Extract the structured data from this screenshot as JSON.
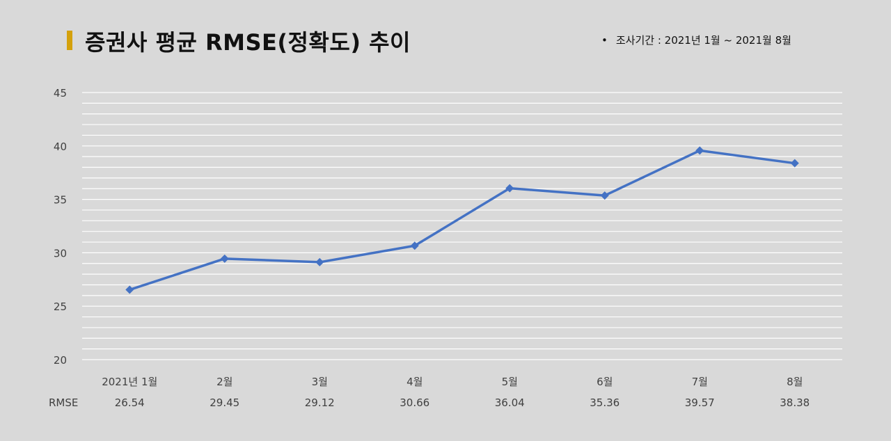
{
  "header": {
    "title": "증권사 평균 RMSE(정확도) 추이",
    "period_bullet": "•",
    "period": "조사기간 : 2021년 1월 ~ 2021월 8월",
    "accent_color": "#d4a10c"
  },
  "chart_data": {
    "type": "line",
    "title": "증권사 평균 RMSE(정확도) 추이",
    "categories": [
      "2021년 1월",
      "2월",
      "3월",
      "4월",
      "5월",
      "6월",
      "7월",
      "8월"
    ],
    "series": [
      {
        "name": "RMSE",
        "values": [
          26.54,
          29.45,
          29.12,
          30.66,
          36.04,
          35.36,
          39.57,
          38.38
        ],
        "color": "#4472c4"
      }
    ],
    "data_table": {
      "row_label": "RMSE",
      "values": [
        "26.54",
        "29.45",
        "29.12",
        "30.66",
        "36.04",
        "35.36",
        "39.57",
        "38.38"
      ]
    },
    "yticks": [
      "20",
      "25",
      "30",
      "35",
      "40",
      "45"
    ],
    "ylim": [
      20,
      45
    ],
    "grid": true,
    "marker": "diamond"
  }
}
